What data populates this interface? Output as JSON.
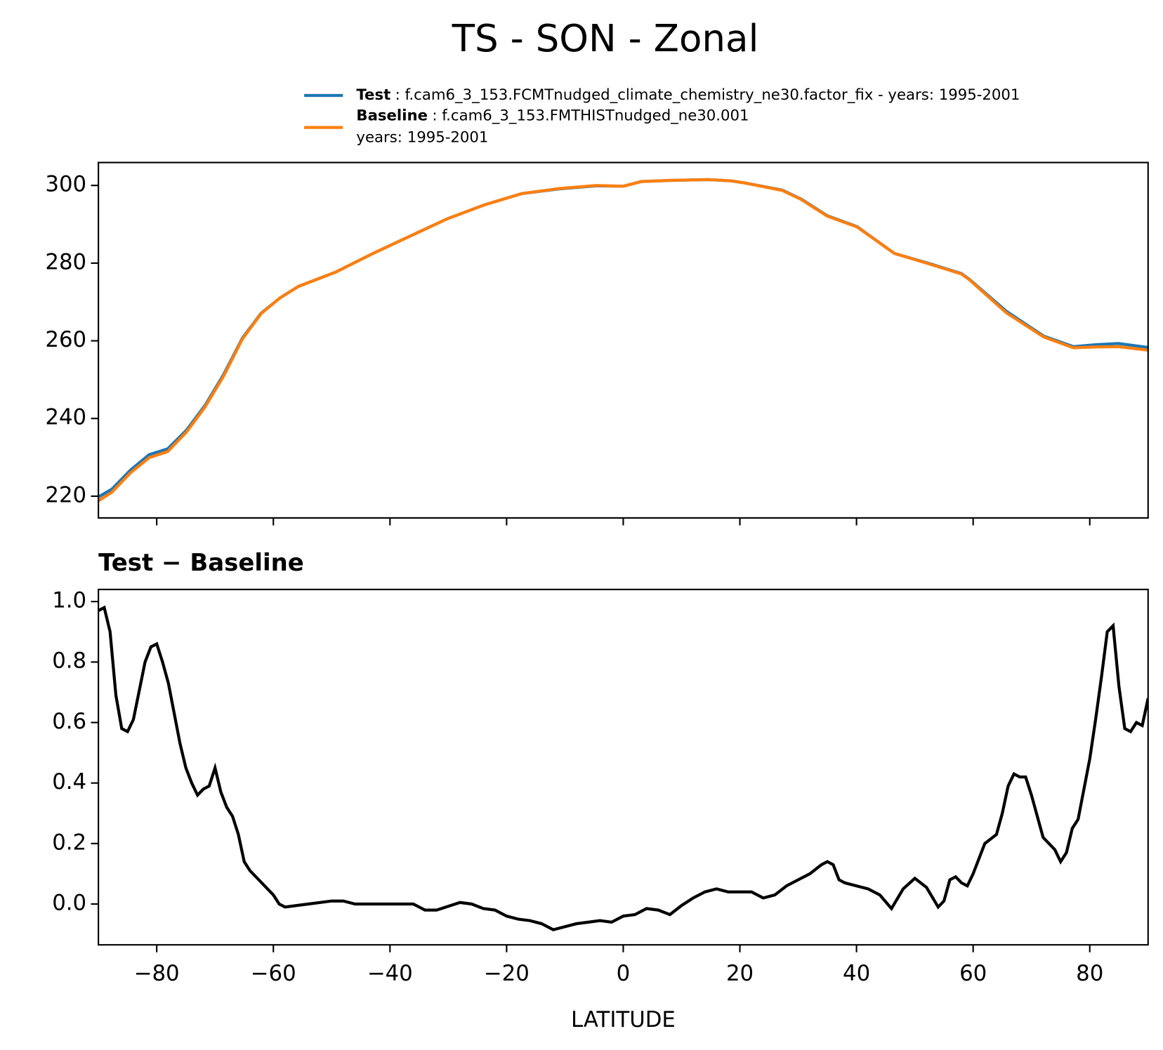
{
  "title": "TS - SON - Zonal",
  "chart_data": [
    {
      "type": "line",
      "x": [
        -90,
        -87.7,
        -84.5,
        -81.3,
        -78.1,
        -74.9,
        -71.7,
        -68.5,
        -65.3,
        -62.1,
        -58.9,
        -55.7,
        -49.3,
        -42.9,
        -36.5,
        -30.2,
        -23.8,
        -17.4,
        -11,
        -4.6,
        0,
        3.1,
        8.2,
        14.6,
        18.4,
        21,
        27.3,
        30.5,
        35,
        40.1,
        46.5,
        52.9,
        58,
        59.3,
        65.7,
        72.1,
        77.2,
        81,
        84.9,
        90
      ],
      "series": [
        {
          "name": "Test",
          "description": [
            ": f.cam6_3_153.FCMTnudged_climate_chemistry_ne30.factor_fix - years: 1995-2001"
          ],
          "color": "#1f77b4",
          "values": [
            219.8,
            221.8,
            226.7,
            230.7,
            232.2,
            237.0,
            243.4,
            251.4,
            260.7,
            267.1,
            271.0,
            274.0,
            277.7,
            282.5,
            287.0,
            291.4,
            295.0,
            297.9,
            299.1,
            299.9,
            299.8,
            301.0,
            301.3,
            301.5,
            301.2,
            300.6,
            298.8,
            296.5,
            292.2,
            289.4,
            282.5,
            279.7,
            277.3,
            275.9,
            267.6,
            261.2,
            258.5,
            259.0,
            259.3,
            258.3
          ]
        },
        {
          "name": "Baseline",
          "description": [
            ": f.cam6_3_153.FMTHISTnudged_ne30.001",
            "years: 1995-2001"
          ],
          "color": "#ff7f0e",
          "values": [
            218.8,
            221.0,
            226.0,
            229.9,
            231.5,
            236.5,
            243.0,
            251.0,
            260.5,
            267.0,
            271.0,
            274.0,
            277.7,
            282.5,
            287.0,
            291.4,
            295.0,
            297.9,
            299.2,
            300.0,
            299.8,
            301.0,
            301.3,
            301.5,
            301.2,
            300.6,
            298.7,
            296.4,
            292.1,
            289.3,
            282.5,
            279.6,
            277.2,
            275.8,
            267.2,
            261.0,
            258.2,
            258.4,
            258.5,
            257.6
          ]
        }
      ],
      "xlim": [
        -90,
        90
      ],
      "xticks": [
        -80,
        -60,
        -40,
        -20,
        0,
        20,
        40,
        60,
        80
      ],
      "xtick_labels": false,
      "ylim": [
        214.4,
        305.9
      ],
      "yticks": [
        220,
        240,
        260,
        280,
        300
      ]
    },
    {
      "type": "line",
      "title": "Test − Baseline",
      "xlabel": "LATITUDE",
      "x": [
        -90,
        -89,
        -88,
        -87,
        -86,
        -85,
        -84,
        -82,
        -81,
        -80,
        -79,
        -78,
        -76,
        -75,
        -74,
        -73,
        -72,
        -71,
        -70,
        -69,
        -68,
        -67,
        -66,
        -65,
        -64,
        -62,
        -60,
        -59,
        -58,
        -56,
        -54,
        -50,
        -48,
        -46,
        -40,
        -36,
        -34,
        -32,
        -28,
        -26,
        -24,
        -22,
        -20,
        -18,
        -16,
        -14,
        -12,
        -10,
        -8,
        -6,
        -4,
        -2,
        0,
        2,
        4,
        6,
        8,
        10,
        12,
        14,
        16,
        18,
        20,
        22,
        24,
        26,
        28,
        30,
        32,
        34,
        35,
        36,
        37,
        38,
        40,
        42,
        44,
        46,
        48,
        50,
        52,
        54,
        55,
        56,
        57,
        58,
        59,
        60,
        62,
        64,
        65,
        66,
        67,
        68,
        69,
        70,
        72,
        73,
        74,
        75,
        76,
        77,
        78,
        79,
        80,
        81,
        82,
        83,
        84,
        85,
        86,
        87,
        88,
        89,
        90
      ],
      "series": [
        {
          "color": "#000000",
          "values": [
            0.97,
            0.98,
            0.9,
            0.69,
            0.58,
            0.57,
            0.61,
            0.8,
            0.85,
            0.86,
            0.8,
            0.73,
            0.53,
            0.45,
            0.4,
            0.36,
            0.38,
            0.39,
            0.45,
            0.37,
            0.32,
            0.29,
            0.23,
            0.14,
            0.11,
            0.07,
            0.03,
            0.0,
            -0.01,
            -0.005,
            0.0,
            0.01,
            0.01,
            0.0,
            0.0,
            0.0,
            -0.02,
            -0.02,
            0.005,
            0.0,
            -0.015,
            -0.02,
            -0.04,
            -0.05,
            -0.055,
            -0.065,
            -0.085,
            -0.075,
            -0.065,
            -0.06,
            -0.055,
            -0.06,
            -0.04,
            -0.035,
            -0.015,
            -0.02,
            -0.035,
            -0.005,
            0.02,
            0.04,
            0.05,
            0.04,
            0.04,
            0.04,
            0.02,
            0.03,
            0.06,
            0.08,
            0.1,
            0.13,
            0.14,
            0.13,
            0.08,
            0.07,
            0.06,
            0.05,
            0.03,
            -0.015,
            0.05,
            0.085,
            0.055,
            -0.01,
            0.01,
            0.08,
            0.09,
            0.07,
            0.06,
            0.1,
            0.2,
            0.23,
            0.3,
            0.39,
            0.43,
            0.42,
            0.42,
            0.36,
            0.22,
            0.2,
            0.18,
            0.14,
            0.17,
            0.25,
            0.28,
            0.38,
            0.48,
            0.61,
            0.75,
            0.9,
            0.92,
            0.72,
            0.58,
            0.57,
            0.6,
            0.59,
            0.68
          ]
        }
      ],
      "xlim": [
        -90,
        90
      ],
      "xticks": [
        {
          "value": -80,
          "label": "−80"
        },
        {
          "value": -60,
          "label": "−60"
        },
        {
          "value": -40,
          "label": "−40"
        },
        {
          "value": -20,
          "label": "−20"
        },
        0,
        20,
        40,
        60,
        80
      ],
      "ylim": [
        -0.135,
        1.04
      ],
      "yticks": [
        {
          "value": 0,
          "label": "0.0"
        },
        0.2,
        0.4,
        0.6,
        0.8,
        {
          "value": 1,
          "label": "1.0"
        }
      ]
    }
  ]
}
